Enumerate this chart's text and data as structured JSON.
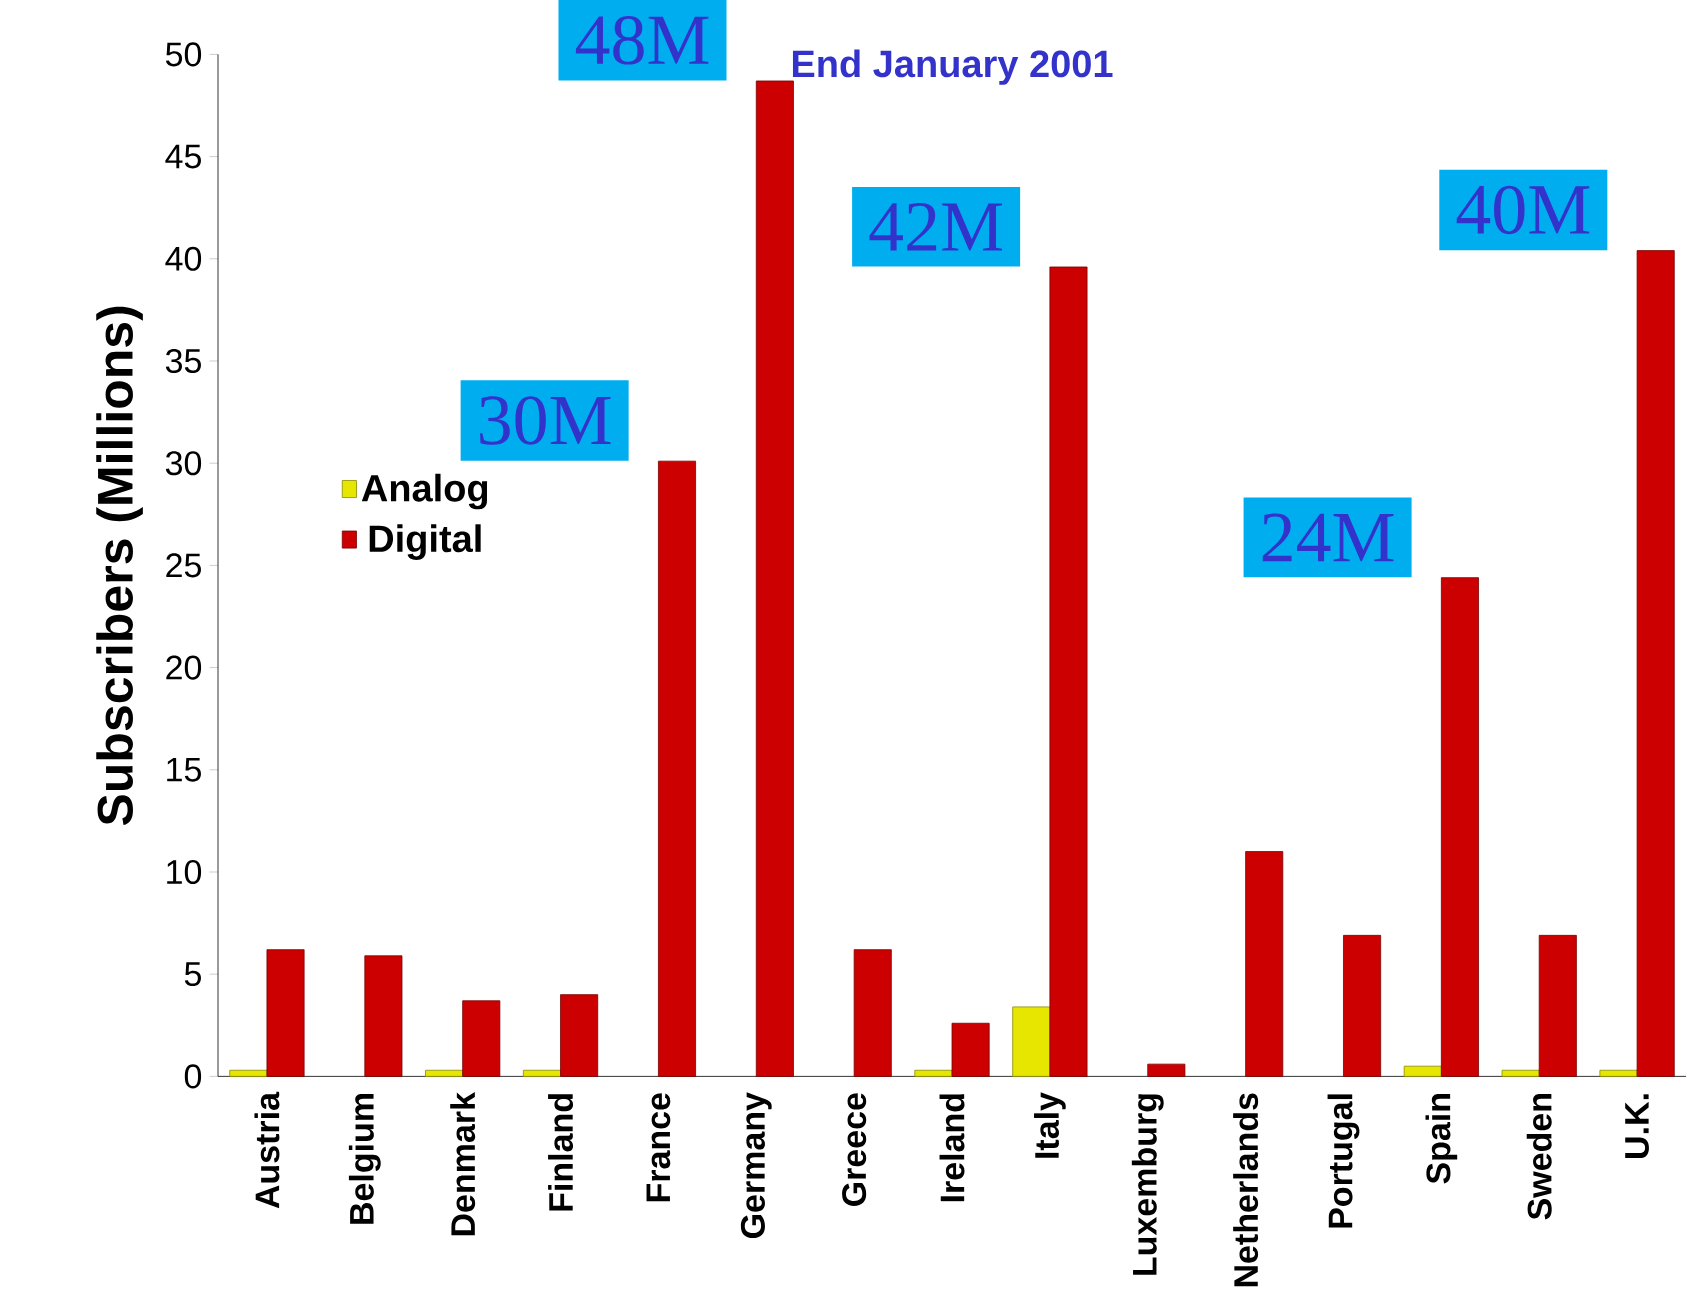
{
  "chart_data": {
    "type": "bar",
    "title": "End January 2001",
    "ylabel": "Subscribers (Millions)",
    "categories": [
      "Austria",
      "Belgium",
      "Denmark",
      "Finland",
      "France",
      "Germany",
      "Greece",
      "Ireland",
      "Italy",
      "Luxemburg",
      "Netherlands",
      "Portugal",
      "Spain",
      "Sweden",
      "U.K."
    ],
    "series": [
      {
        "name": "Analog",
        "color": "#e6e600",
        "values": [
          0.3,
          null,
          0.3,
          0.3,
          null,
          null,
          null,
          0.3,
          3.4,
          null,
          null,
          null,
          0.5,
          0.3,
          0.3
        ]
      },
      {
        "name": "Digital",
        "color": "#cc0000",
        "values": [
          6.2,
          5.9,
          3.7,
          4.0,
          30.1,
          48.7,
          6.2,
          2.6,
          39.6,
          0.6,
          11.0,
          6.9,
          24.4,
          6.9,
          40.4
        ]
      }
    ],
    "ylim": [
      0,
      50
    ],
    "yticks": [
      0,
      5,
      10,
      15,
      20,
      25,
      30,
      35,
      40,
      45,
      50
    ],
    "legend": "left",
    "grid": false,
    "annotations": [
      {
        "text": "30M",
        "x": "France",
        "y": 30.1
      },
      {
        "text": "48M",
        "x": "Germany",
        "y": 48.7
      },
      {
        "text": "42M",
        "x": "Italy",
        "y": 39.6
      },
      {
        "text": "24M",
        "x": "Spain",
        "y": 24.4
      },
      {
        "text": "40M",
        "x": "U.K.",
        "y": 40.4
      }
    ]
  }
}
